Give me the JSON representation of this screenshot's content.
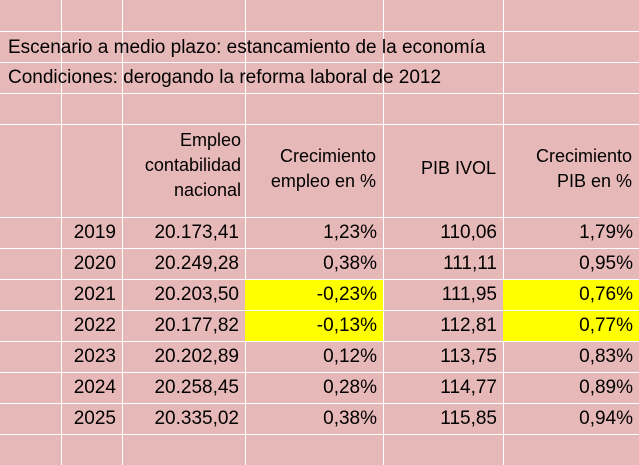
{
  "title_line_1": "Escenario a medio plazo: estancamiento de la economía",
  "title_line_2": "Condiciones: derogando la reforma laboral de 2012",
  "headers": {
    "empleo": "Empleo\ncontabilidad\nnacional",
    "crec_empleo": "Crecimiento\nempleo en %",
    "pib": "PIB IVOL",
    "crec_pib": "Crecimiento\nPIB en %"
  },
  "rows": [
    {
      "year": "2019",
      "empleo": "20.173,41",
      "crec_empleo": "1,23%",
      "pib": "110,06",
      "crec_pib": "1,79%"
    },
    {
      "year": "2020",
      "empleo": "20.249,28",
      "crec_empleo": "0,38%",
      "pib": "111,11",
      "crec_pib": "0,95%"
    },
    {
      "year": "2021",
      "empleo": "20.203,50",
      "crec_empleo": "-0,23%",
      "pib": "111,95",
      "crec_pib": "0,76%"
    },
    {
      "year": "2022",
      "empleo": "20.177,82",
      "crec_empleo": "-0,13%",
      "pib": "112,81",
      "crec_pib": "0,77%"
    },
    {
      "year": "2023",
      "empleo": "20.202,89",
      "crec_empleo": "0,12%",
      "pib": "113,75",
      "crec_pib": "0,83%"
    },
    {
      "year": "2024",
      "empleo": "20.258,45",
      "crec_empleo": "0,28%",
      "pib": "114,77",
      "crec_pib": "0,89%"
    },
    {
      "year": "2025",
      "empleo": "20.335,02",
      "crec_empleo": "0,38%",
      "pib": "115,85",
      "crec_pib": "0,94%"
    }
  ],
  "highlight_color": "#ffff00",
  "background_color": "#e6b8b7"
}
